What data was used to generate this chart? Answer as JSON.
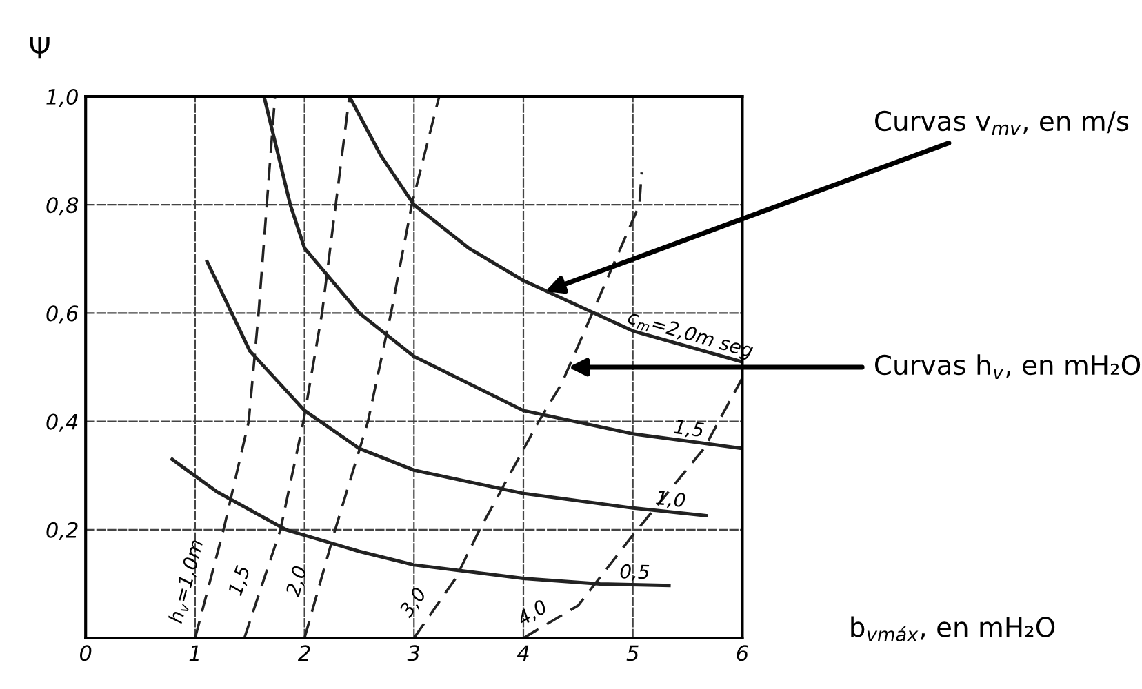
{
  "chart_data": {
    "type": "line",
    "ylabel": "Ψ",
    "xlabel": "b$_{vmáx}$, en mH₂O",
    "xlim": [
      0,
      6
    ],
    "xticks": [
      0,
      1,
      2,
      3,
      4,
      5,
      6
    ],
    "ylim": [
      0,
      1
    ],
    "yticks": [
      {
        "value": 0.2,
        "label": "0,2"
      },
      {
        "value": 0.4,
        "label": "0,4"
      },
      {
        "value": 0.6,
        "label": "0,6"
      },
      {
        "value": 0.8,
        "label": "0,8"
      },
      {
        "value": 1.0,
        "label": "1,0"
      }
    ],
    "grid": true,
    "legend": false,
    "marker": "none",
    "series": [
      {
        "name": "0,5",
        "color": "#222222",
        "line_style": "solid",
        "x": [
          0.79,
          1.2,
          1.83,
          2.5,
          3,
          4,
          4.7,
          5.33
        ],
        "values": [
          0.33,
          0.27,
          0.2,
          0.16,
          0.135,
          0.11,
          0.1,
          0.097
        ]
      },
      {
        "name": "1,0",
        "color": "#222222",
        "line_style": "solid",
        "x": [
          1.11,
          1.5,
          2,
          2.5,
          3,
          4,
          5,
          5.67
        ],
        "values": [
          0.695,
          0.53,
          0.42,
          0.35,
          0.31,
          0.267,
          0.24,
          0.226
        ]
      },
      {
        "name": "1,5",
        "color": "#222222",
        "line_style": "solid",
        "x": [
          1.63,
          1.87,
          2,
          2.5,
          3,
          4,
          5,
          6
        ],
        "values": [
          1.0,
          0.8,
          0.72,
          0.6,
          0.52,
          0.42,
          0.377,
          0.35
        ]
      },
      {
        "name": "c$_{m}$=2,0m seg",
        "color": "#222222",
        "line_style": "solid",
        "x": [
          2.41,
          2.7,
          3,
          3.5,
          4,
          5,
          6
        ],
        "values": [
          1.0,
          0.89,
          0.8,
          0.72,
          0.66,
          0.567,
          0.51
        ]
      },
      {
        "name": "h$_{v}$=1,0m",
        "color": "#222222",
        "line_style": "dashed",
        "x": [
          1,
          1.26,
          1.49,
          1.58,
          1.73
        ],
        "values": [
          0,
          0.2,
          0.4,
          0.6,
          1.0
        ]
      },
      {
        "name": "1,5",
        "color": "#222222",
        "line_style": "dashed",
        "x": [
          1.45,
          1.78,
          1.99,
          2.16,
          2.41
        ],
        "values": [
          0,
          0.2,
          0.4,
          0.6,
          1.0
        ]
      },
      {
        "name": "2,0",
        "color": "#222222",
        "line_style": "dashed",
        "x": [
          2,
          2.28,
          2.58,
          2.79,
          2.98,
          3.23
        ],
        "values": [
          0,
          0.2,
          0.4,
          0.6,
          0.8,
          1.0
        ]
      },
      {
        "name": "3,0",
        "color": "#222222",
        "line_style": "dashed",
        "x": [
          3,
          3.38,
          3.6,
          4.14,
          4.35,
          5.06,
          5.08
        ],
        "values": [
          0,
          0.11,
          0.2,
          0.4,
          0.47,
          0.8,
          0.86
        ]
      },
      {
        "name": "4,0",
        "color": "#222222",
        "line_style": "dashed",
        "x": [
          4,
          4.5,
          5,
          5.65,
          6
        ],
        "values": [
          0,
          0.06,
          0.19,
          0.35,
          0.48
        ]
      }
    ],
    "annotations": [
      {
        "text": "Curvas v$_{mv}$, en m/s",
        "x": 4.2,
        "y": 0.64
      },
      {
        "text": "Curvas h$_{v}$, en mH₂O",
        "x": 4.41,
        "y": 0.5
      }
    ]
  }
}
